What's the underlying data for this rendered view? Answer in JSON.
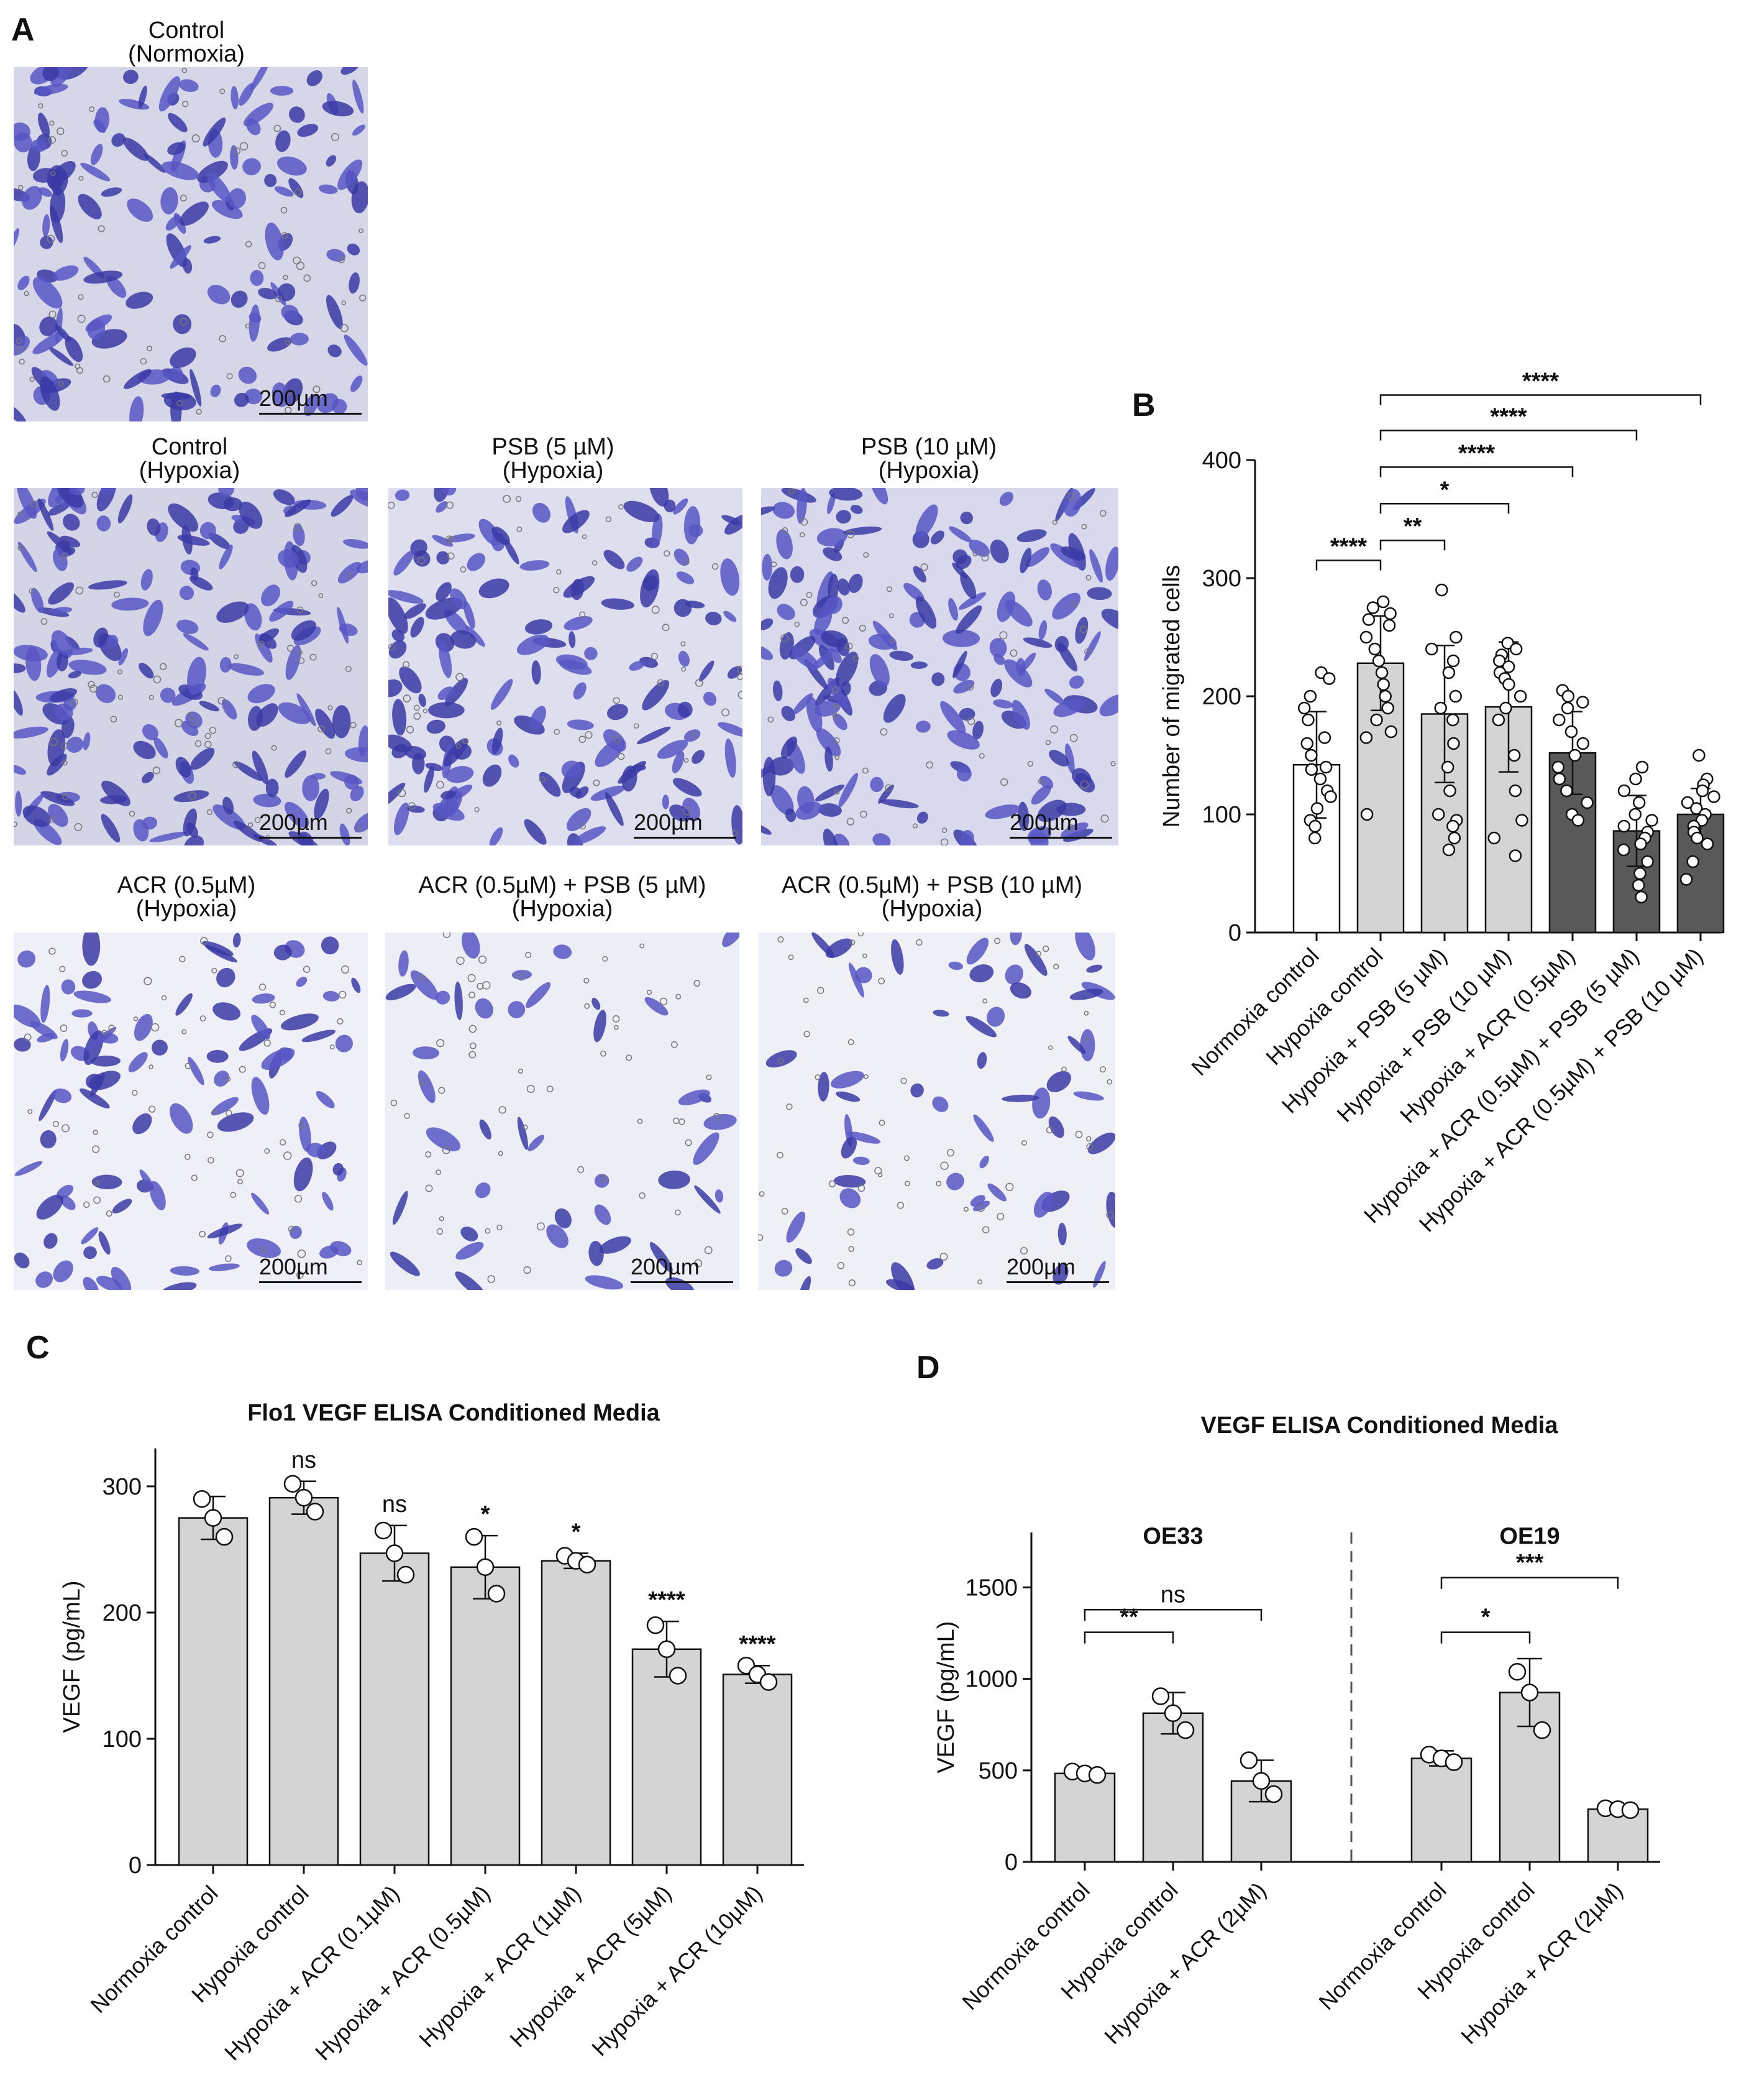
{
  "panels": {
    "A": "A",
    "B": "B",
    "C": "C",
    "D": "D"
  },
  "micrographs": [
    {
      "id": "normoxia",
      "line1": "Control",
      "line2": "(Normoxia)",
      "scale": "200µm",
      "density": 0.9,
      "bg": "#d5d6e8"
    },
    {
      "id": "hypoxia",
      "line1": "Control",
      "line2": "(Hypoxia)",
      "scale": "200µm",
      "density": 1.0,
      "bg": "#d3d4e6"
    },
    {
      "id": "psb5",
      "line1": "PSB (5 µM)",
      "line2": "(Hypoxia)",
      "scale": "200µm",
      "density": 0.85,
      "bg": "#dddeee"
    },
    {
      "id": "psb10",
      "line1": "PSB (10 µM)",
      "line2": "(Hypoxia)",
      "scale": "200µm",
      "density": 0.95,
      "bg": "#d8d9ec"
    },
    {
      "id": "acr05",
      "line1": "ACR (0.5µM)",
      "line2": "(Hypoxia)",
      "scale": "200µm",
      "density": 0.55,
      "bg": "#eeeff7"
    },
    {
      "id": "acr_psb5",
      "line1": "ACR (0.5µM) + PSB (5 µM)",
      "line2": "(Hypoxia)",
      "scale": "200µm",
      "density": 0.25,
      "bg": "#eceef5"
    },
    {
      "id": "acr_psb10",
      "line1": "ACR (0.5µM) + PSB (10 µM)",
      "line2": "(Hypoxia)",
      "scale": "200µm",
      "density": 0.35,
      "bg": "#eef0f6"
    }
  ],
  "chart_data": [
    {
      "panel": "B",
      "type": "bar",
      "title": "",
      "ylabel": "Number of migrated cells",
      "ylim": [
        0,
        400
      ],
      "yticks": [
        0,
        100,
        200,
        300,
        400
      ],
      "categories": [
        "Normoxia control",
        "Hypoxia control",
        "Hypoxia + PSB (5 µM)",
        "Hypoxia + PSB (10 µM)",
        "Hypoxia + ACR (0.5µM)",
        "Hypoxia + ACR (0.5µM) + PSB (5 µM)",
        "Hypoxia + ACR (0.5µM) + PSB (10 µM)"
      ],
      "values": [
        142,
        228,
        185,
        191,
        152,
        86,
        100
      ],
      "errors": [
        45,
        40,
        58,
        55,
        35,
        30,
        22
      ],
      "bar_colors": [
        "#ffffff",
        "#d4d4d4",
        "#d4d4d4",
        "#d4d4d4",
        "#595959",
        "#595959",
        "#595959"
      ],
      "points": [
        [
          220,
          215,
          200,
          190,
          180,
          165,
          160,
          150,
          140,
          138,
          130,
          120,
          115,
          105,
          95,
          90,
          80
        ],
        [
          280,
          275,
          270,
          265,
          260,
          250,
          240,
          230,
          220,
          210,
          200,
          190,
          180,
          170,
          165,
          100
        ],
        [
          290,
          250,
          240,
          230,
          220,
          200,
          190,
          180,
          160,
          140,
          120,
          100,
          95,
          90,
          80,
          70
        ],
        [
          245,
          240,
          235,
          230,
          225,
          220,
          215,
          210,
          200,
          190,
          180,
          150,
          120,
          95,
          80,
          65
        ],
        [
          205,
          200,
          195,
          190,
          180,
          170,
          160,
          150,
          140,
          130,
          120,
          110,
          100,
          95
        ],
        [
          140,
          130,
          120,
          110,
          100,
          95,
          90,
          85,
          80,
          75,
          70,
          60,
          50,
          40,
          30
        ],
        [
          150,
          130,
          125,
          120,
          115,
          110,
          105,
          100,
          95,
          90,
          85,
          80,
          75,
          60,
          45
        ]
      ],
      "sig": [
        {
          "from": 0,
          "to": 1,
          "label": "****",
          "y": 315
        },
        {
          "from": 1,
          "to": 2,
          "label": "**",
          "y": 332
        },
        {
          "from": 1,
          "to": 3,
          "label": "*",
          "y": 363
        },
        {
          "from": 1,
          "to": 4,
          "label": "****",
          "y": 394
        },
        {
          "from": 1,
          "to": 5,
          "label": "****",
          "y": 425
        },
        {
          "from": 1,
          "to": 6,
          "label": "****",
          "y": 455
        }
      ]
    },
    {
      "panel": "C",
      "type": "bar",
      "title": "Flo1 VEGF ELISA Conditioned Media",
      "ylabel": "VEGF (pg/mL)",
      "ylim": [
        0,
        330
      ],
      "yticks": [
        0,
        100,
        200,
        300
      ],
      "categories": [
        "Normoxia control",
        "Hypoxia control",
        "Hypoxia + ACR (0.1µM)",
        "Hypoxia + ACR (0.5µM)",
        "Hypoxia + ACR (1µM)",
        "Hypoxia + ACR (5µM)",
        "Hypoxia + ACR (10µM)"
      ],
      "values": [
        275,
        291,
        247,
        236,
        241,
        171,
        151
      ],
      "errors": [
        17,
        13,
        22,
        25,
        6,
        22,
        7
      ],
      "points": [
        [
          290,
          275,
          260
        ],
        [
          302,
          291,
          280
        ],
        [
          265,
          247,
          230
        ],
        [
          260,
          236,
          215
        ],
        [
          245,
          241,
          238
        ],
        [
          190,
          171,
          150
        ],
        [
          158,
          151,
          145
        ]
      ],
      "annotations": [
        "",
        "ns",
        "ns",
        "*",
        "*",
        "****",
        "****"
      ]
    },
    {
      "panel": "D",
      "type": "bar",
      "title": "VEGF ELISA Conditioned Media",
      "ylabel": "VEGF (pg/mL)",
      "ylim": [
        0,
        1800
      ],
      "yticks": [
        0,
        500,
        1000,
        1500
      ],
      "groups": [
        {
          "name": "OE33",
          "categories": [
            "Normoxia control",
            "Hypoxia control",
            "Hypoxia + ACR (2µM)"
          ],
          "values": [
            470,
            790,
            430
          ],
          "errors": [
            15,
            110,
            110
          ],
          "points": [
            [
              480,
              470,
              462
            ],
            [
              880,
              790,
              700
            ],
            [
              540,
              430,
              360
            ]
          ],
          "sig": [
            {
              "from": 0,
              "to": 1,
              "label": "**",
              "y": 1220
            },
            {
              "from": 0,
              "to": 2,
              "label": "ns",
              "y": 1340
            }
          ]
        },
        {
          "name": "OE19",
          "categories": [
            "Normoxia control",
            "Hypoxia control",
            "Hypoxia + ACR (2µM)"
          ],
          "values": [
            550,
            900,
            280
          ],
          "errors": [
            40,
            180,
            10
          ],
          "points": [
            [
              570,
              550,
              530
            ],
            [
              1010,
              900,
              700
            ],
            [
              285,
              280,
              275
            ]
          ],
          "sig": [
            {
              "from": 0,
              "to": 1,
              "label": "*",
              "y": 1220
            },
            {
              "from": 0,
              "to": 2,
              "label": "***",
              "y": 1510
            }
          ]
        }
      ]
    }
  ]
}
